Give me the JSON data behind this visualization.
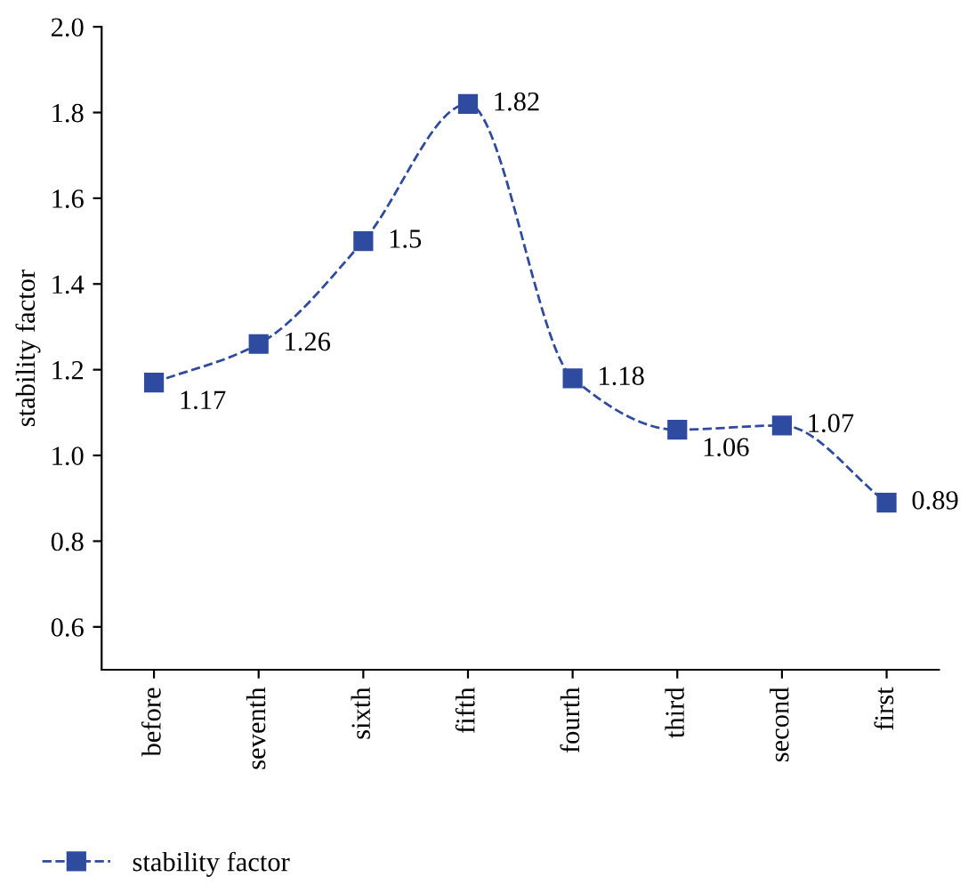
{
  "chart_data": {
    "type": "line",
    "ylabel": "stability factor",
    "categories": [
      "before",
      "seventh",
      "sixth",
      "fifth",
      "fourth",
      "third",
      "second",
      "first"
    ],
    "series": [
      {
        "name": "stability factor",
        "color": "#2f4b9f",
        "values": [
          1.17,
          1.26,
          1.5,
          1.82,
          1.18,
          1.06,
          1.07,
          0.89
        ]
      }
    ],
    "ylim": [
      0.5,
      2.0
    ],
    "yticks": [
      0.6,
      0.8,
      {
        "value": 1,
        "label": "1.0"
      },
      1.2,
      1.4,
      1.6,
      1.8,
      {
        "value": 2,
        "label": "2.0"
      }
    ],
    "data_labels": true,
    "marker": "square",
    "line_style": "dashed",
    "legend": "bottom",
    "grid": false
  }
}
